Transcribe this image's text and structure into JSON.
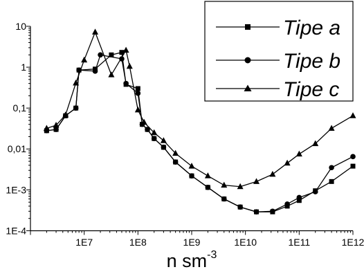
{
  "chart_data": {
    "type": "line",
    "title": "",
    "xlabel": "n sm",
    "xlabel_sup": "-3",
    "ylabel": "",
    "xscale": "log",
    "yscale": "log",
    "xlim": [
      1000000,
      1000000000000
    ],
    "ylim": [
      0.0001,
      10
    ],
    "x_tick_labels": [
      "1E7",
      "1E8",
      "1E9",
      "1E10",
      "1E11",
      "1E12"
    ],
    "y_tick_labels": [
      "10",
      "1",
      "0,1",
      "0,01",
      "1E-3",
      "1E-4"
    ],
    "grid": false,
    "legend_position": "top-right",
    "series": [
      {
        "name": "Tipe a",
        "marker": "square",
        "color": "#000000",
        "x": [
          2000000.0,
          3000000.0,
          4500000.0,
          7000000.0,
          8000000.0,
          16000000.0,
          32000000.0,
          50000000.0,
          60000000.0,
          100000000.0,
          120000000.0,
          150000000.0,
          200000000.0,
          300000000.0,
          500000000.0,
          1000000000.0,
          2000000000.0,
          4000000000.0,
          8000000000.0,
          16000000000.0,
          32000000000.0,
          60000000000.0,
          100000000000.0,
          200000000000.0,
          400000000000.0,
          1000000000000.0
        ],
        "y": [
          0.028,
          0.03,
          0.065,
          0.1,
          0.85,
          0.9,
          2.0,
          2.3,
          0.38,
          0.3,
          0.04,
          0.03,
          0.018,
          0.011,
          0.0048,
          0.0022,
          0.00115,
          0.0006,
          0.00038,
          0.00029,
          0.00029,
          0.0004,
          0.00055,
          0.00095,
          0.0016,
          0.0038
        ]
      },
      {
        "name": "Tipe b",
        "marker": "circle",
        "color": "#000000",
        "x": [
          2000000.0,
          3000000.0,
          4500000.0,
          7000000.0,
          8000000.0,
          16000000.0,
          20000000.0,
          50000000.0,
          60000000.0,
          100000000.0,
          120000000.0,
          150000000.0,
          200000000.0,
          300000000.0,
          500000000.0,
          1000000000.0,
          2000000000.0,
          4000000000.0,
          8000000000.0,
          16000000000.0,
          32000000000.0,
          60000000000.0,
          100000000000.0,
          200000000000.0,
          400000000000.0,
          1000000000000.0
        ],
        "y": [
          0.028,
          0.03,
          0.065,
          0.1,
          0.85,
          0.8,
          2.0,
          1.6,
          0.4,
          0.23,
          0.04,
          0.03,
          0.018,
          0.011,
          0.0048,
          0.0022,
          0.00115,
          0.0006,
          0.00038,
          0.00029,
          0.0003,
          0.00045,
          0.00065,
          0.0009,
          0.0035,
          0.0065
        ]
      },
      {
        "name": "Tipe c",
        "marker": "triangle",
        "color": "#000000",
        "x": [
          2000000.0,
          3000000.0,
          4500000.0,
          7000000.0,
          10000000.0,
          16000000.0,
          32000000.0,
          60000000.0,
          70000000.0,
          100000000.0,
          130000000.0,
          200000000.0,
          300000000.0,
          500000000.0,
          1000000000.0,
          2000000000.0,
          4000000000.0,
          8000000000.0,
          16000000000.0,
          32000000000.0,
          60000000000.0,
          100000000000.0,
          200000000000.0,
          400000000000.0,
          1000000000000.0
        ],
        "y": [
          0.032,
          0.038,
          0.068,
          0.41,
          1.5,
          7.2,
          0.65,
          2.6,
          1.05,
          0.09,
          0.045,
          0.025,
          0.016,
          0.0078,
          0.0038,
          0.0022,
          0.0013,
          0.0012,
          0.0016,
          0.0024,
          0.0045,
          0.0075,
          0.0135,
          0.032,
          0.065
        ]
      }
    ]
  }
}
